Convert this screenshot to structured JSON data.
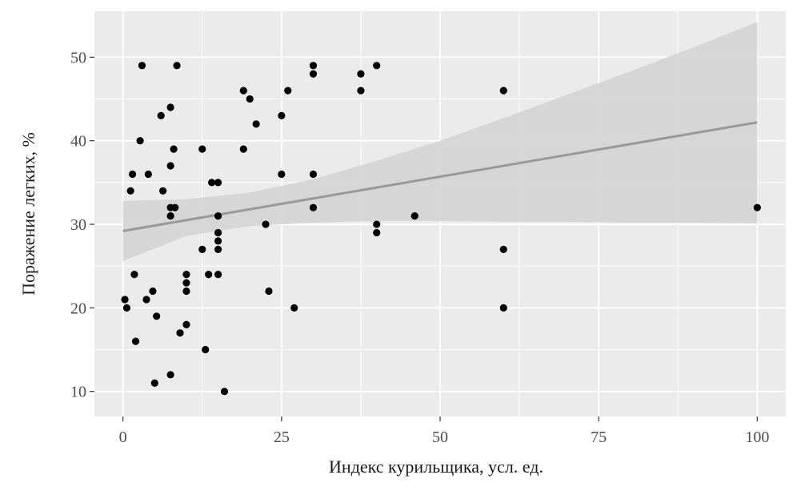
{
  "chart_data": {
    "type": "scatter",
    "title": "",
    "xlabel": "Индекс курильщика, усл. ед.",
    "ylabel": "Поражение легких, %",
    "xlim": [
      -4.5,
      104.5
    ],
    "ylim": [
      7,
      55.5
    ],
    "x_ticks": [
      0,
      25,
      50,
      75,
      100
    ],
    "y_ticks": [
      10,
      20,
      30,
      40,
      50
    ],
    "x_tick_labels": [
      "0",
      "25",
      "50",
      "75",
      "100"
    ],
    "y_tick_labels": [
      "10",
      "20",
      "30",
      "40",
      "50"
    ],
    "grid": true,
    "legend": "none",
    "colors": {
      "panel": "#ebebeb",
      "grid": "#ffffff",
      "point": "#000000",
      "ribbon": "#d4d4d4",
      "line": "#999999"
    },
    "points": [
      {
        "x": 3,
        "y": 49
      },
      {
        "x": 8.5,
        "y": 49
      },
      {
        "x": 30,
        "y": 49
      },
      {
        "x": 40,
        "y": 49
      },
      {
        "x": 30,
        "y": 48
      },
      {
        "x": 37.5,
        "y": 48
      },
      {
        "x": 19,
        "y": 46
      },
      {
        "x": 26,
        "y": 46
      },
      {
        "x": 37.5,
        "y": 46
      },
      {
        "x": 60,
        "y": 46
      },
      {
        "x": 20,
        "y": 45
      },
      {
        "x": 7.5,
        "y": 44
      },
      {
        "x": 6,
        "y": 43
      },
      {
        "x": 25,
        "y": 43
      },
      {
        "x": 21,
        "y": 42
      },
      {
        "x": 2.7,
        "y": 40
      },
      {
        "x": 8,
        "y": 39
      },
      {
        "x": 12.5,
        "y": 39
      },
      {
        "x": 19,
        "y": 39
      },
      {
        "x": 7.5,
        "y": 37
      },
      {
        "x": 1.5,
        "y": 36
      },
      {
        "x": 4,
        "y": 36
      },
      {
        "x": 25,
        "y": 36
      },
      {
        "x": 30,
        "y": 36
      },
      {
        "x": 14,
        "y": 35
      },
      {
        "x": 15,
        "y": 35
      },
      {
        "x": 1.2,
        "y": 34
      },
      {
        "x": 6.3,
        "y": 34
      },
      {
        "x": 7.5,
        "y": 32
      },
      {
        "x": 8.2,
        "y": 32
      },
      {
        "x": 30,
        "y": 32
      },
      {
        "x": 100,
        "y": 32
      },
      {
        "x": 7.5,
        "y": 31
      },
      {
        "x": 15,
        "y": 31
      },
      {
        "x": 46,
        "y": 31
      },
      {
        "x": 22.5,
        "y": 30
      },
      {
        "x": 40,
        "y": 30
      },
      {
        "x": 15,
        "y": 29
      },
      {
        "x": 40,
        "y": 29
      },
      {
        "x": 15,
        "y": 28
      },
      {
        "x": 12.5,
        "y": 27
      },
      {
        "x": 15,
        "y": 27
      },
      {
        "x": 60,
        "y": 27
      },
      {
        "x": 1.8,
        "y": 24
      },
      {
        "x": 10,
        "y": 24
      },
      {
        "x": 13.5,
        "y": 24
      },
      {
        "x": 15,
        "y": 24
      },
      {
        "x": 10,
        "y": 23
      },
      {
        "x": 4.7,
        "y": 22
      },
      {
        "x": 10,
        "y": 22
      },
      {
        "x": 23,
        "y": 22
      },
      {
        "x": 0.3,
        "y": 21
      },
      {
        "x": 3.7,
        "y": 21
      },
      {
        "x": 0.6,
        "y": 20
      },
      {
        "x": 27,
        "y": 20
      },
      {
        "x": 60,
        "y": 20
      },
      {
        "x": 5.3,
        "y": 19
      },
      {
        "x": 10,
        "y": 18
      },
      {
        "x": 9,
        "y": 17
      },
      {
        "x": 2,
        "y": 16
      },
      {
        "x": 13,
        "y": 15
      },
      {
        "x": 7.5,
        "y": 12
      },
      {
        "x": 5,
        "y": 11
      },
      {
        "x": 16,
        "y": 10
      }
    ],
    "regression_line": {
      "x": [
        0,
        100
      ],
      "y": [
        29.2,
        42.2
      ]
    },
    "confidence_band": {
      "x": [
        0,
        10,
        20,
        30,
        40,
        50,
        60,
        70,
        80,
        90,
        100
      ],
      "upper": [
        32.8,
        33.0,
        33.8,
        35.4,
        37.6,
        40.0,
        42.7,
        45.5,
        48.3,
        51.2,
        54.2
      ],
      "lower": [
        25.6,
        28.6,
        29.8,
        30.2,
        30.4,
        30.4,
        30.3,
        30.3,
        30.2,
        30.2,
        30.1
      ]
    }
  }
}
